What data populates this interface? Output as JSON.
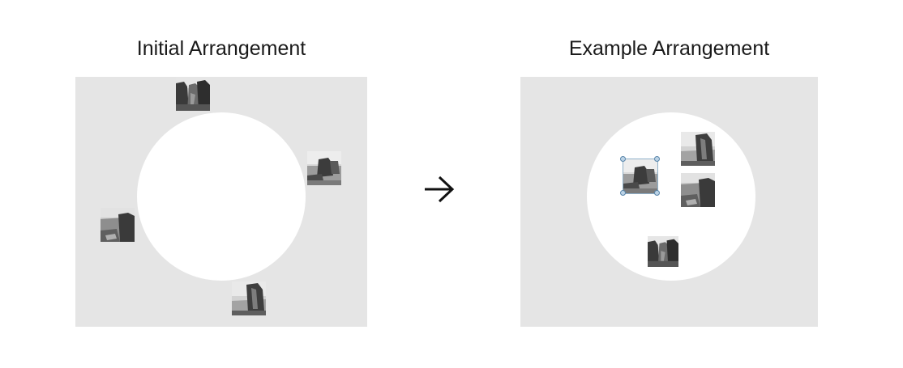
{
  "panels": {
    "left": {
      "title": "Initial Arrangement"
    },
    "right": {
      "title": "Example Arrangement"
    }
  },
  "arrow": {
    "icon": "right-arrow-icon"
  },
  "colors": {
    "panel_background": "#e5e5e5",
    "circle": "#ffffff",
    "selection_handle": "#5b87ab"
  }
}
